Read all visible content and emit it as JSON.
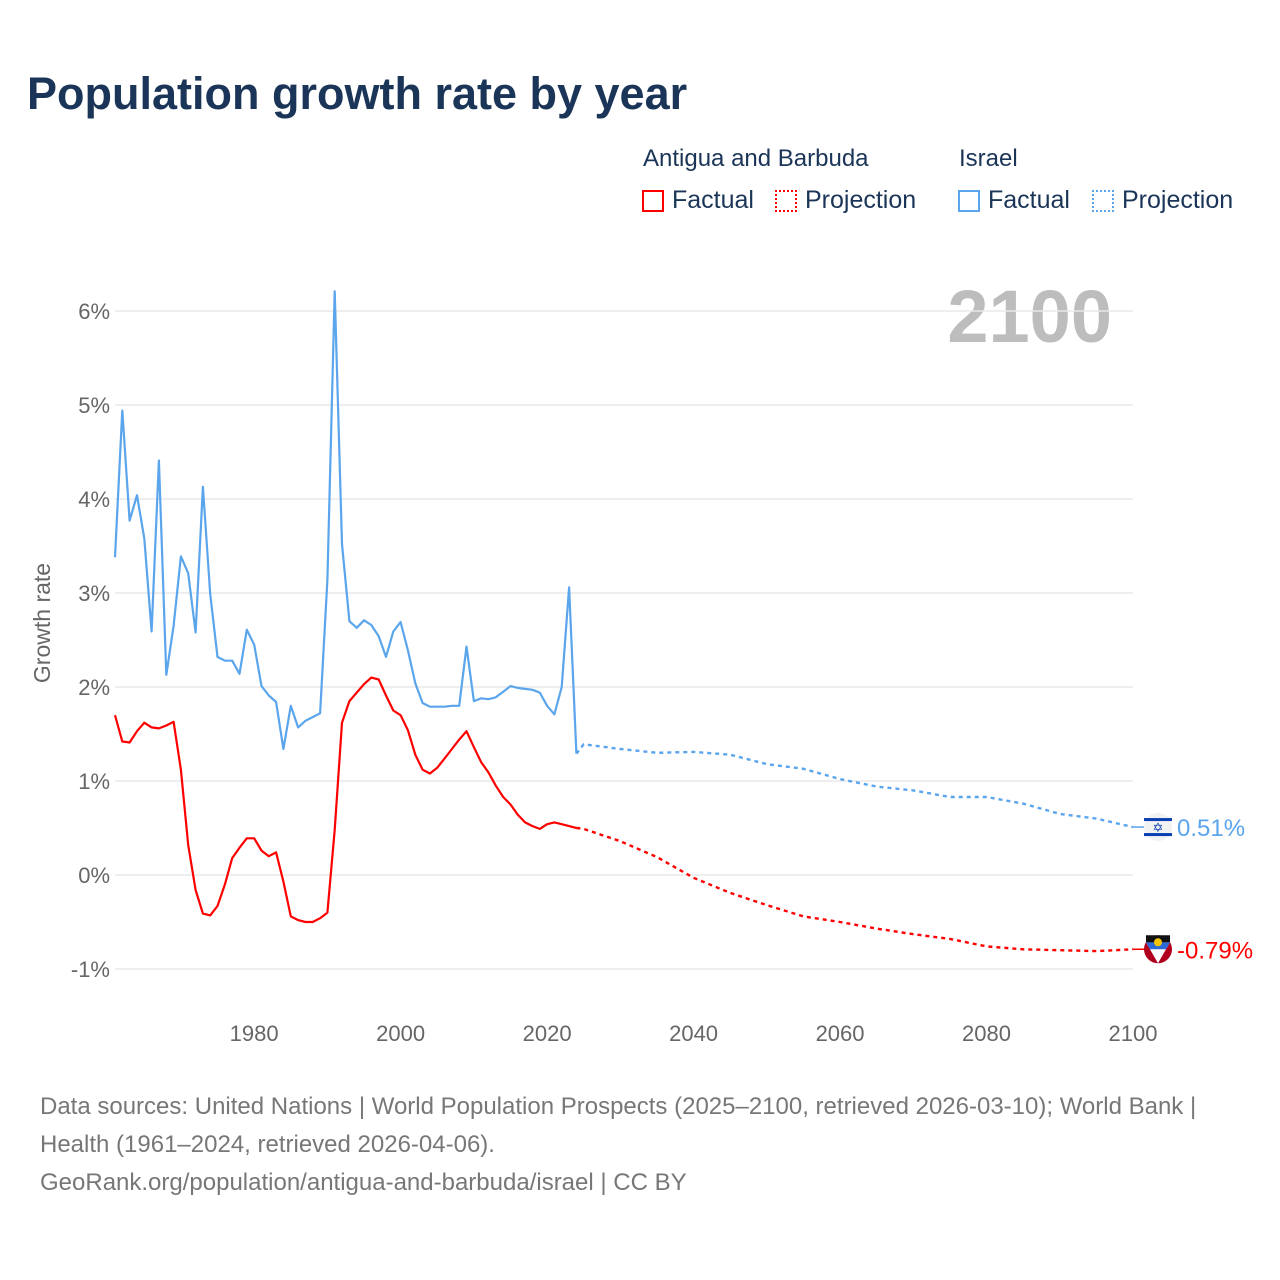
{
  "title": "Population growth rate by year",
  "legend": {
    "groups": [
      {
        "country": "Antigua and Barbuda",
        "factual": "Factual",
        "projection": "Projection",
        "color": "#ff0000"
      },
      {
        "country": "Israel",
        "factual": "Factual",
        "projection": "Projection",
        "color": "#5aa5ec"
      }
    ]
  },
  "chart_data": {
    "type": "line",
    "title": "Population growth rate by year",
    "ylabel": "Growth rate",
    "xlabel": "",
    "year_watermark": "2100",
    "xlim": [
      1961,
      2100
    ],
    "ylim": [
      -1.4,
      6.2
    ],
    "xticks": [
      1980,
      2000,
      2020,
      2040,
      2060,
      2080,
      2100
    ],
    "yticks": [
      -1,
      0,
      1,
      2,
      3,
      4,
      5,
      6
    ],
    "ytick_labels": [
      "-1%",
      "0%",
      "1%",
      "2%",
      "3%",
      "4%",
      "5%",
      "6%"
    ],
    "grid": true,
    "series": [
      {
        "name": "Israel",
        "color": "#5aa5ec",
        "end_label": "0.51%",
        "factual_start": 1961,
        "factual": [
          3.38,
          4.94,
          3.77,
          4.04,
          3.58,
          2.59,
          4.41,
          2.13,
          2.65,
          3.39,
          3.21,
          2.58,
          4.13,
          2.99,
          2.32,
          2.28,
          2.28,
          2.14,
          2.61,
          2.45,
          2.01,
          1.91,
          1.84,
          1.34,
          1.8,
          1.57,
          1.64,
          1.68,
          1.72,
          3.14,
          6.21,
          3.52,
          2.7,
          2.63,
          2.71,
          2.66,
          2.54,
          2.32,
          2.59,
          2.69,
          2.39,
          2.04,
          1.83,
          1.79,
          1.79,
          1.79,
          1.8,
          1.8,
          2.43,
          1.85,
          1.88,
          1.87,
          1.89,
          1.95,
          2.01,
          1.99,
          1.98,
          1.97,
          1.94,
          1.8,
          1.71,
          2.0,
          3.06,
          1.29
        ],
        "projection_years": [
          2024,
          2025,
          2030,
          2035,
          2040,
          2045,
          2050,
          2055,
          2060,
          2065,
          2070,
          2075,
          2080,
          2085,
          2090,
          2095,
          2100
        ],
        "projection": [
          1.29,
          1.39,
          1.34,
          1.3,
          1.31,
          1.28,
          1.18,
          1.13,
          1.02,
          0.94,
          0.9,
          0.83,
          0.83,
          0.76,
          0.65,
          0.6,
          0.51
        ]
      },
      {
        "name": "Antigua and Barbuda",
        "color": "#ff0000",
        "end_label": "-0.79%",
        "factual_start": 1961,
        "factual": [
          1.7,
          1.42,
          1.41,
          1.53,
          1.62,
          1.57,
          1.56,
          1.59,
          1.63,
          1.12,
          0.32,
          -0.16,
          -0.41,
          -0.43,
          -0.33,
          -0.1,
          0.18,
          0.29,
          0.39,
          0.39,
          0.26,
          0.2,
          0.24,
          -0.07,
          -0.44,
          -0.48,
          -0.5,
          -0.5,
          -0.46,
          -0.4,
          0.48,
          1.62,
          1.85,
          1.94,
          2.03,
          2.1,
          2.08,
          1.91,
          1.75,
          1.7,
          1.54,
          1.28,
          1.12,
          1.08,
          1.14,
          1.24,
          1.34,
          1.44,
          1.53,
          1.36,
          1.2,
          1.09,
          0.95,
          0.83,
          0.75,
          0.64,
          0.56,
          0.52,
          0.49,
          0.54,
          0.56,
          0.54,
          0.52,
          0.5
        ],
        "projection_years": [
          2024,
          2025,
          2030,
          2035,
          2040,
          2045,
          2050,
          2055,
          2060,
          2065,
          2070,
          2075,
          2080,
          2085,
          2090,
          2095,
          2100
        ],
        "projection": [
          0.5,
          0.49,
          0.36,
          0.19,
          -0.03,
          -0.19,
          -0.32,
          -0.44,
          -0.5,
          -0.57,
          -0.63,
          -0.68,
          -0.76,
          -0.79,
          -0.8,
          -0.81,
          -0.79
        ]
      }
    ]
  },
  "footer": {
    "sources": "Data sources: United Nations | World Population Prospects (2025–2100, retrieved 2026-03-10); World Bank | Health (1961–2024, retrieved 2026-04-06).",
    "link": "GeoRank.org/population/antigua-and-barbuda/israel | CC BY"
  }
}
